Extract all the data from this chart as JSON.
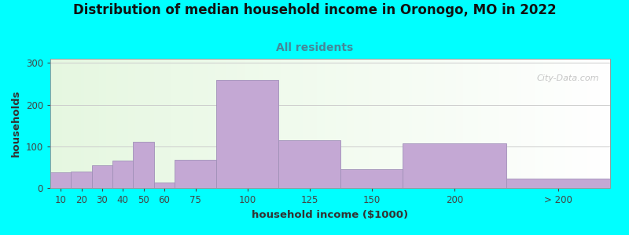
{
  "title": "Distribution of median household income in Oronogo, MO in 2022",
  "subtitle": "All residents",
  "xlabel": "household income ($1000)",
  "ylabel": "households",
  "background_color": "#00FFFF",
  "bar_color": "#C4A8D4",
  "bar_edgecolor": "#A090B8",
  "values": [
    38,
    40,
    55,
    65,
    110,
    13,
    68,
    260,
    115,
    45,
    108,
    22
  ],
  "bar_lefts": [
    0,
    1,
    2,
    3,
    4,
    5,
    6,
    8,
    11,
    14,
    17,
    22
  ],
  "bar_widths": [
    1,
    1,
    1,
    1,
    1,
    1,
    2,
    3,
    3,
    3,
    5,
    5
  ],
  "xtick_positions": [
    0.5,
    1.5,
    2.5,
    3.5,
    4.5,
    5.5,
    7,
    9.5,
    12.5,
    15.5,
    19.5,
    24.5
  ],
  "xtick_labels": [
    "10",
    "20",
    "30",
    "40",
    "50",
    "60",
    "75",
    "100",
    "125",
    "150",
    "200",
    "> 200"
  ],
  "xlim": [
    0,
    27
  ],
  "ylim": [
    0,
    310
  ],
  "yticks": [
    0,
    100,
    200,
    300
  ],
  "watermark": "City-Data.com",
  "title_fontsize": 12,
  "subtitle_fontsize": 10,
  "axis_label_fontsize": 9.5,
  "tick_fontsize": 8.5
}
